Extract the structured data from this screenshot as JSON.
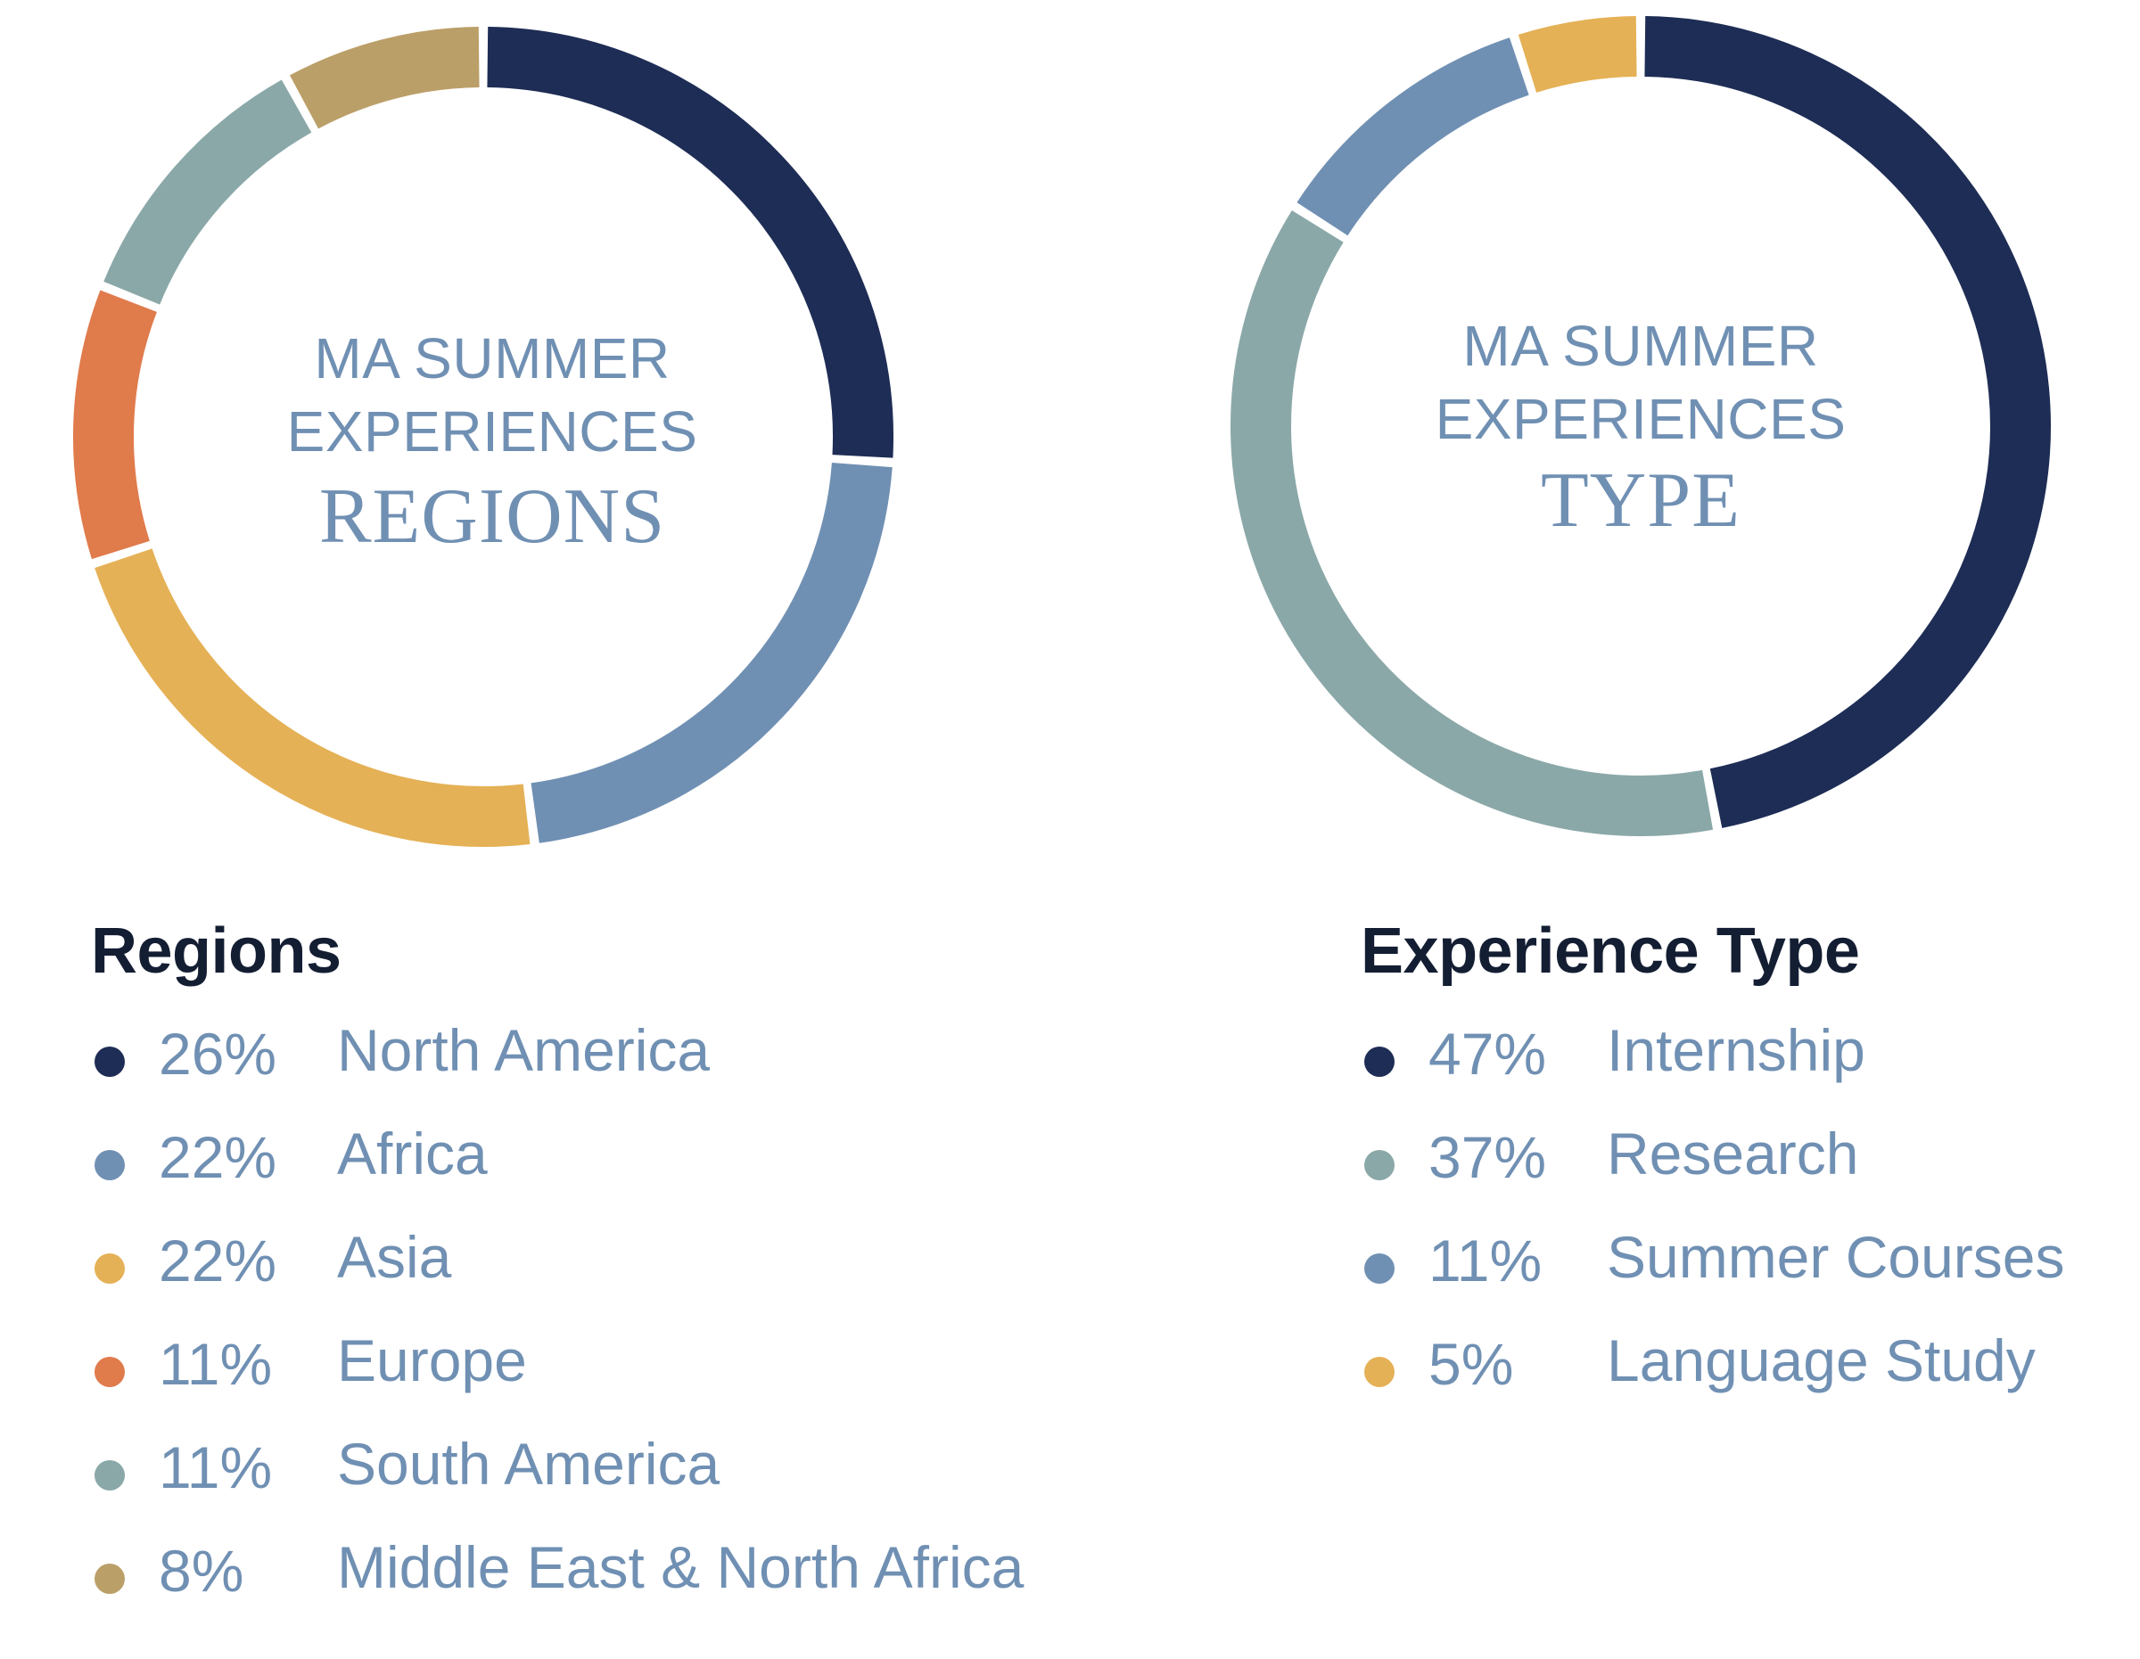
{
  "chart_data": [
    {
      "type": "pie",
      "variant": "donut",
      "center_text": {
        "line1": "MA SUMMER",
        "line2": "EXPERIENCES",
        "line3": "REGIONS"
      },
      "legend_title": "Regions",
      "legend_placement": "bottom",
      "slices": [
        {
          "label": "North America",
          "value": 26,
          "display": "26%",
          "color": "#1e2d55"
        },
        {
          "label": "Africa",
          "value": 22,
          "display": "22%",
          "color": "#7090b3"
        },
        {
          "label": "Asia",
          "value": 22,
          "display": "22%",
          "color": "#e5b156"
        },
        {
          "label": "Europe",
          "value": 11,
          "display": "11%",
          "color": "#e07b4c"
        },
        {
          "label": "South America",
          "value": 11,
          "display": "11%",
          "color": "#8ba8a8"
        },
        {
          "label": "Middle East & North Africa",
          "value": 8,
          "display": "8%",
          "color": "#bb9f68"
        }
      ]
    },
    {
      "type": "pie",
      "variant": "donut",
      "center_text": {
        "line1": "MA SUMMER",
        "line2": "EXPERIENCES",
        "line3": "TYPE"
      },
      "legend_title": "Experience Type",
      "legend_placement": "bottom",
      "slices": [
        {
          "label": "Internship",
          "value": 47,
          "display": "47%",
          "color": "#1e2d55"
        },
        {
          "label": "Research",
          "value": 37,
          "display": "37%",
          "color": "#8ba8a8"
        },
        {
          "label": "Summer Courses",
          "value": 11,
          "display": "11%",
          "color": "#7090b3"
        },
        {
          "label": "Language Study",
          "value": 5,
          "display": "5%",
          "color": "#e5b156"
        }
      ]
    }
  ]
}
